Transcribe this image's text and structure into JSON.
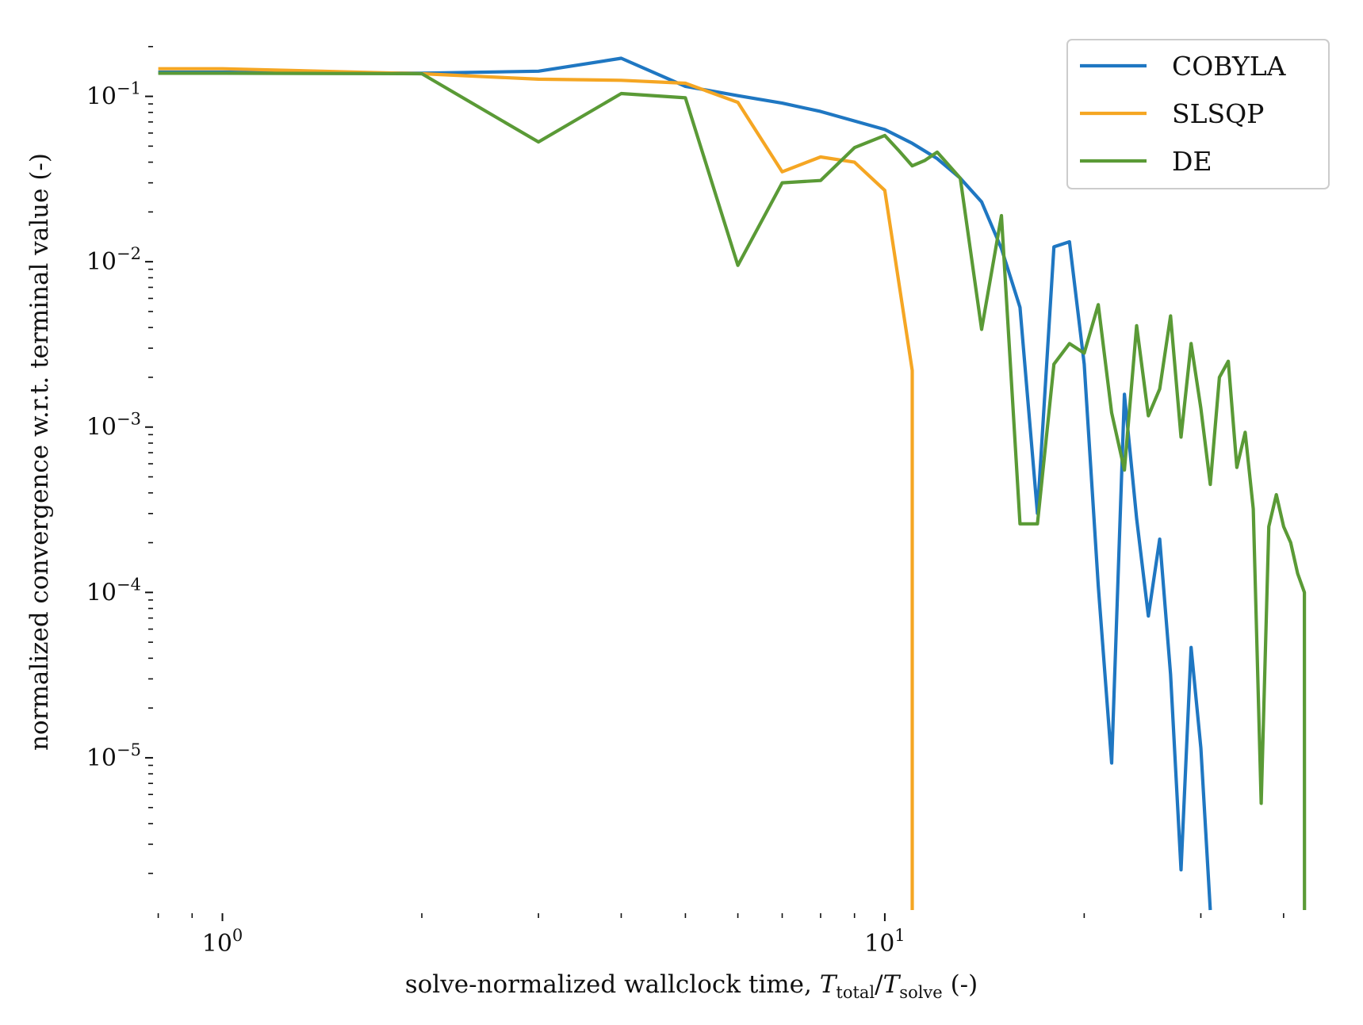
{
  "chart_data": {
    "type": "line",
    "title": "",
    "xlabel": {
      "prefix": "solve-normalized wallclock time, ",
      "var1": "T",
      "sub1": "total",
      "sep": "/",
      "var2": "T",
      "sub2": "solve",
      "suffix": " (-)"
    },
    "ylabel": "normalized convergence w.r.t. terminal value (-)",
    "xscale": "log",
    "yscale": "log",
    "xlim": [
      0.79,
      48
    ],
    "ylim": [
      1.2e-06,
      0.26
    ],
    "xticks": [
      {
        "value": 1,
        "base": "10",
        "exp": "0"
      },
      {
        "value": 10,
        "base": "10",
        "exp": "1"
      }
    ],
    "yticks": [
      {
        "value": 0.1,
        "base": "10",
        "exp": "−1"
      },
      {
        "value": 0.01,
        "base": "10",
        "exp": "−2"
      },
      {
        "value": 0.001,
        "base": "10",
        "exp": "−3"
      },
      {
        "value": 0.0001,
        "base": "10",
        "exp": "−4"
      },
      {
        "value": 1e-05,
        "base": "10",
        "exp": "−5"
      }
    ],
    "grid": false,
    "legend_position": "top-right",
    "series": [
      {
        "name": "COBYLA",
        "color": "#1f77c2",
        "x": [
          0.8,
          1.0,
          2.0,
          3.0,
          4.0,
          5.0,
          6.0,
          7.0,
          8.0,
          9.0,
          10.0,
          11.0,
          12.0,
          13.0,
          14.0,
          15.0,
          16.0,
          17.0,
          18.0,
          19.0,
          20.0,
          21.0,
          22.0,
          23.0,
          24.0,
          25.0,
          26.0,
          27.0,
          28.0,
          29.0,
          30.0,
          31.0
        ],
        "y": [
          0.14,
          0.14,
          0.138,
          0.142,
          0.17,
          0.115,
          0.101,
          0.091,
          0.081,
          0.071,
          0.063,
          0.052,
          0.042,
          0.032,
          0.023,
          0.012,
          0.0053,
          0.0003,
          0.0123,
          0.0132,
          0.0024,
          0.00011,
          9.3e-06,
          0.00158,
          0.00028,
          7.2e-05,
          0.00021,
          3.2e-05,
          2.1e-06,
          4.65e-05,
          1.15e-05,
          1.2e-06
        ]
      },
      {
        "name": "SLSQP",
        "color": "#f5a623",
        "x": [
          0.8,
          1.0,
          2.0,
          3.0,
          4.0,
          5.0,
          6.0,
          7.0,
          8.0,
          9.0,
          10.0,
          11.0,
          11.001
        ],
        "y": [
          0.147,
          0.147,
          0.137,
          0.127,
          0.125,
          0.12,
          0.092,
          0.035,
          0.043,
          0.04,
          0.027,
          0.0022,
          1.2e-06
        ]
      },
      {
        "name": "DE",
        "color": "#5a9a36",
        "x": [
          0.8,
          1.0,
          2.0,
          3.0,
          4.0,
          5.0,
          6.0,
          7.0,
          8.0,
          9.0,
          10.0,
          10.5,
          11.0,
          11.5,
          12.0,
          13.0,
          14.0,
          15.0,
          16.0,
          17.0,
          18.0,
          19.0,
          20.0,
          21.0,
          22.0,
          23.0,
          24.0,
          25.0,
          26.0,
          27.0,
          28.0,
          29.0,
          30.0,
          31.0,
          32.0,
          33.0,
          34.0,
          35.0,
          36.0,
          37.0,
          38.0,
          39.0,
          40.0,
          41.0,
          42.0,
          43.0,
          43.01
        ],
        "y": [
          0.138,
          0.138,
          0.137,
          0.053,
          0.104,
          0.098,
          0.0095,
          0.03,
          0.031,
          0.049,
          0.058,
          0.047,
          0.038,
          0.041,
          0.046,
          0.032,
          0.0039,
          0.019,
          0.00026,
          0.00026,
          0.0024,
          0.0032,
          0.0028,
          0.0055,
          0.00122,
          0.00055,
          0.0041,
          0.00117,
          0.0017,
          0.0047,
          0.00087,
          0.0032,
          0.0013,
          0.00045,
          0.002,
          0.0025,
          0.00057,
          0.00093,
          0.00032,
          5.3e-06,
          0.00025,
          0.00039,
          0.00025,
          0.0002,
          0.00013,
          0.0001,
          1.2e-06
        ]
      }
    ]
  }
}
